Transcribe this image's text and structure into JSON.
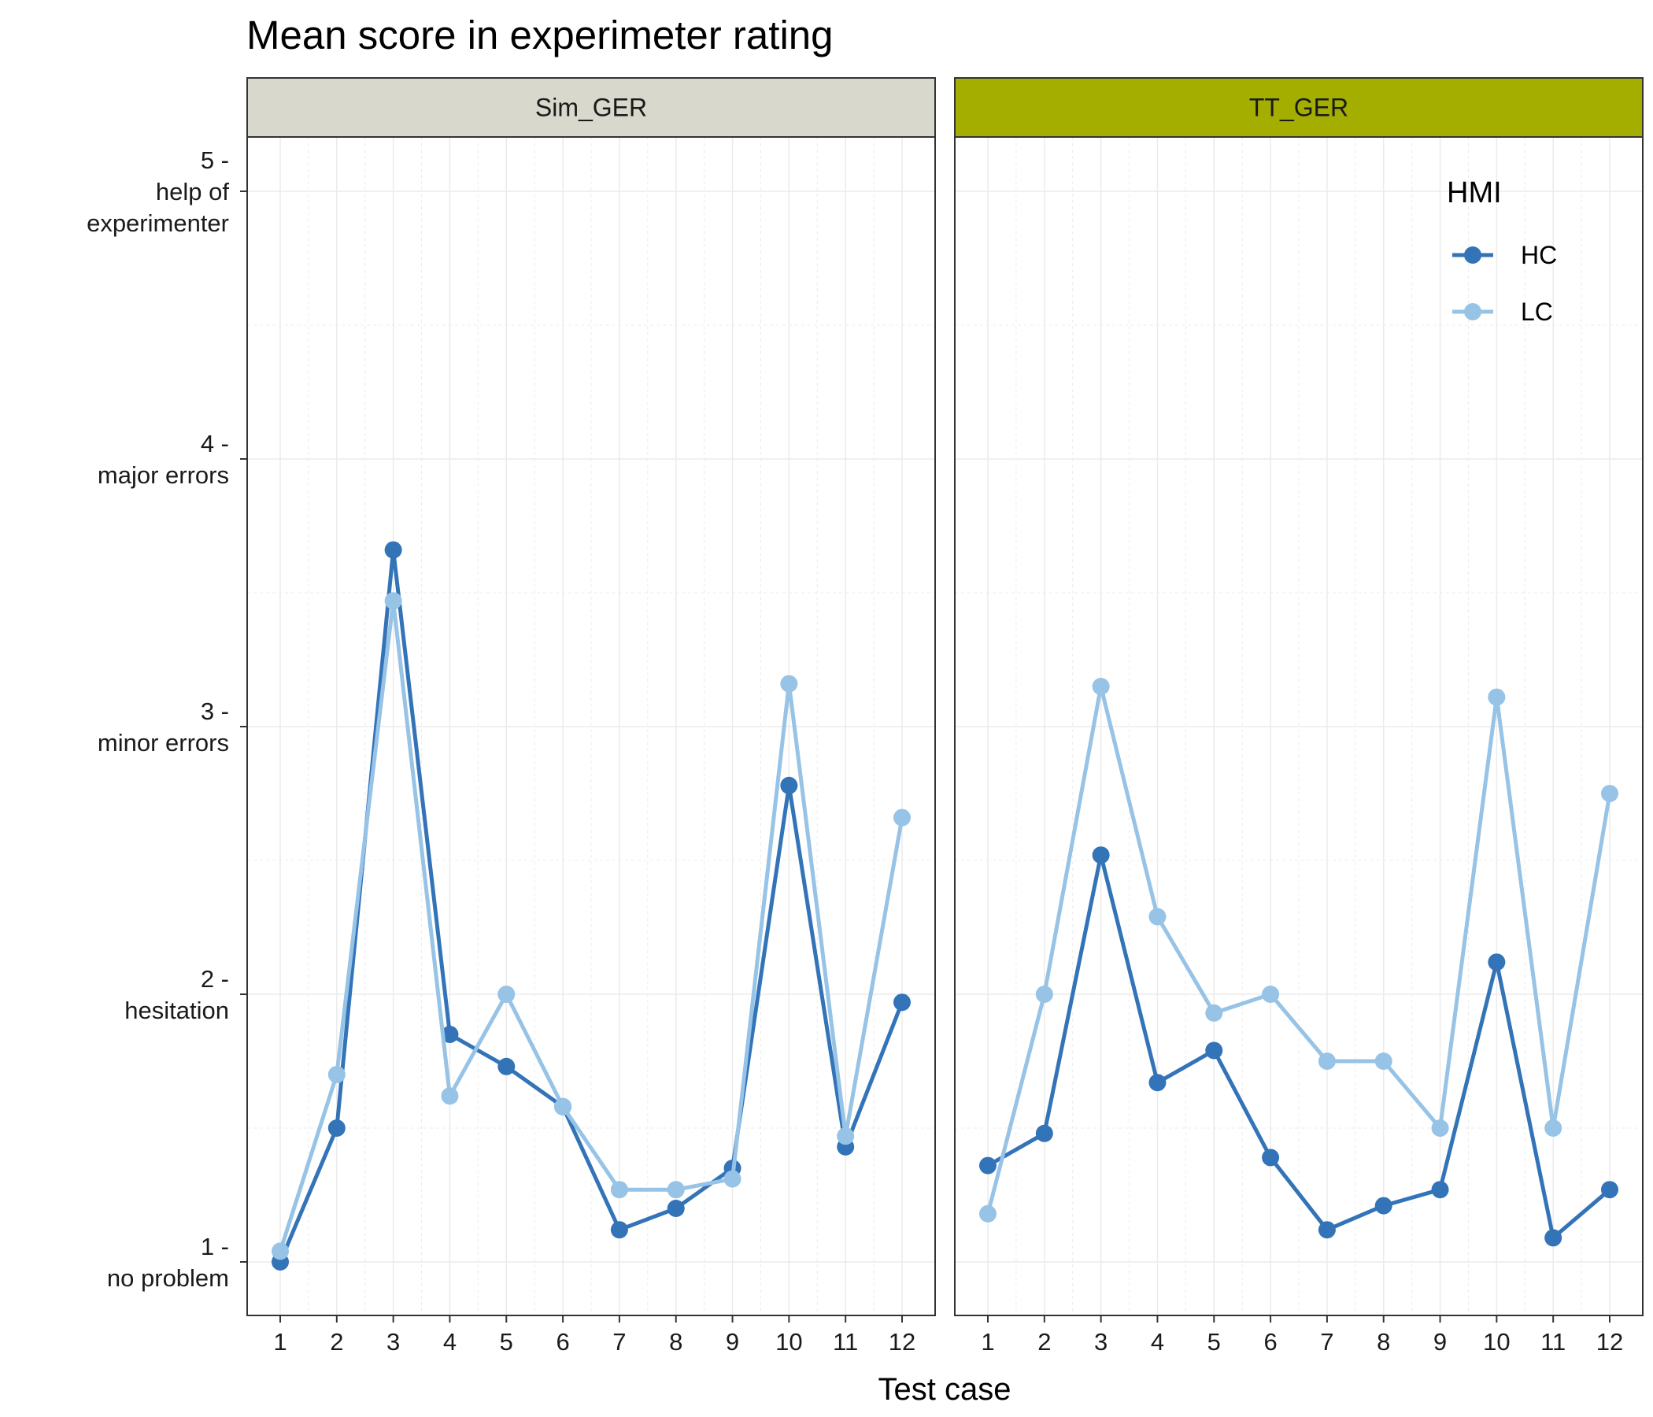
{
  "chart_data": {
    "type": "line",
    "title": "Mean score in experimeter rating",
    "xlabel": "Test case",
    "ylabel": "",
    "categories": [
      "1",
      "2",
      "3",
      "4",
      "5",
      "6",
      "7",
      "8",
      "9",
      "10",
      "11",
      "12"
    ],
    "ylim": [
      0.8,
      5.2
    ],
    "y_ticks": [
      {
        "value": 1,
        "lines": [
          "1 -",
          "no problem"
        ]
      },
      {
        "value": 2,
        "lines": [
          "2 -",
          "hesitation"
        ]
      },
      {
        "value": 3,
        "lines": [
          "3 -",
          "minor errors"
        ]
      },
      {
        "value": 4,
        "lines": [
          "4 -",
          "major errors"
        ]
      },
      {
        "value": 5,
        "lines": [
          "5 -",
          "help of",
          "experimenter"
        ]
      }
    ],
    "grid": true,
    "legend": {
      "title": "HMI",
      "position": "top-right",
      "entries": [
        "HC",
        "LC"
      ]
    },
    "colors": {
      "HC": "#3373b8",
      "LC": "#96c3e6",
      "strip_sim": "#d9d8cc",
      "strip_tt": "#a3ae00"
    },
    "panels": [
      {
        "name": "Sim_GER",
        "series": [
          {
            "name": "HC",
            "values": [
              1.0,
              1.5,
              3.66,
              1.85,
              1.73,
              1.58,
              1.12,
              1.2,
              1.35,
              2.78,
              1.43,
              1.97
            ]
          },
          {
            "name": "LC",
            "values": [
              1.04,
              1.7,
              3.47,
              1.62,
              2.0,
              1.58,
              1.27,
              1.27,
              1.31,
              3.16,
              1.47,
              2.66
            ]
          }
        ]
      },
      {
        "name": "TT_GER",
        "series": [
          {
            "name": "HC",
            "values": [
              1.36,
              1.48,
              2.52,
              1.67,
              1.79,
              1.39,
              1.12,
              1.21,
              1.27,
              2.12,
              1.09,
              1.27
            ]
          },
          {
            "name": "LC",
            "values": [
              1.18,
              2.0,
              3.15,
              2.29,
              1.93,
              2.0,
              1.75,
              1.75,
              1.5,
              3.11,
              1.5,
              2.75
            ]
          }
        ]
      }
    ]
  }
}
